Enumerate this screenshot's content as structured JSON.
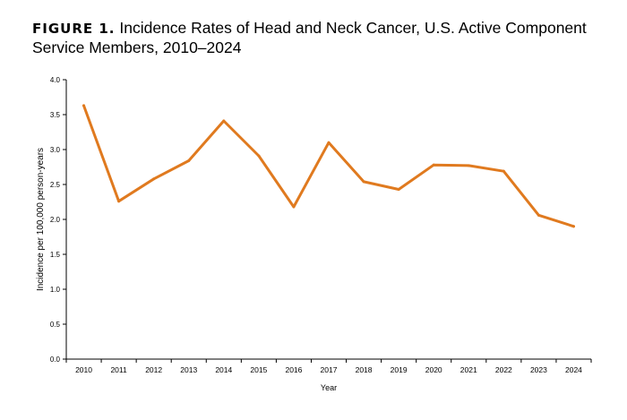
{
  "figure": {
    "label": "FIGURE 1.",
    "title": "Incidence Rates of Head and Neck Cancer, U.S. Active Component Service Members, 2010–2024"
  },
  "chart_data": {
    "type": "line",
    "xlabel": "Year",
    "ylabel": "Incidence per 100,000 person-years",
    "ylim": [
      0,
      4
    ],
    "yticks": [
      "0.0",
      "0.5",
      "1.0",
      "1.5",
      "2.0",
      "2.5",
      "3.0",
      "3.5",
      "4.0"
    ],
    "categories": [
      "2010",
      "2011",
      "2012",
      "2013",
      "2014",
      "2015",
      "2016",
      "2017",
      "2018",
      "2019",
      "2020",
      "2021",
      "2022",
      "2023",
      "2024"
    ],
    "series": [
      {
        "values": [
          3.63,
          2.26,
          2.58,
          2.84,
          3.41,
          2.91,
          2.18,
          3.1,
          2.54,
          2.43,
          2.78,
          2.77,
          2.69,
          2.06,
          1.9
        ],
        "color": "#e07a1f"
      }
    ],
    "grid": false,
    "legend": "none"
  }
}
